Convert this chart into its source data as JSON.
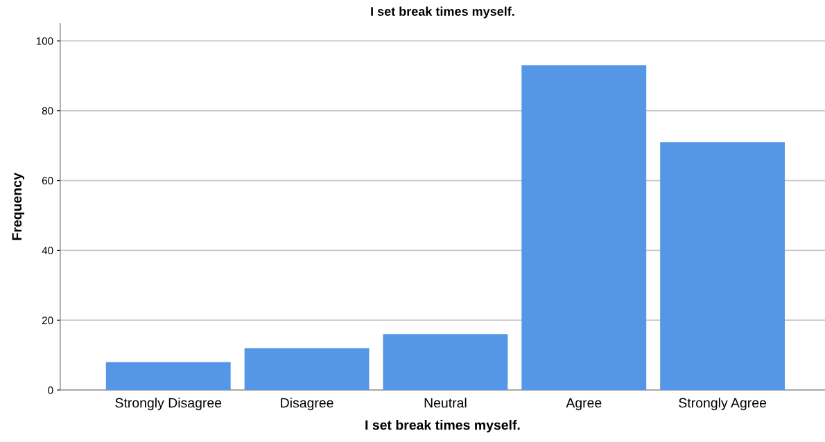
{
  "chart_data": {
    "type": "bar",
    "title": "I set break times myself.",
    "xlabel": "I set break times myself.",
    "ylabel": "Frequency",
    "categories": [
      "Strongly Disagree",
      "Disagree",
      "Neutral",
      "Agree",
      "Strongly Agree"
    ],
    "values": [
      8,
      12,
      16,
      93,
      71
    ],
    "color": "#5596e6",
    "ylim": [
      0,
      105
    ],
    "yticks": [
      0,
      20,
      40,
      60,
      80,
      100
    ],
    "grid": "y"
  }
}
